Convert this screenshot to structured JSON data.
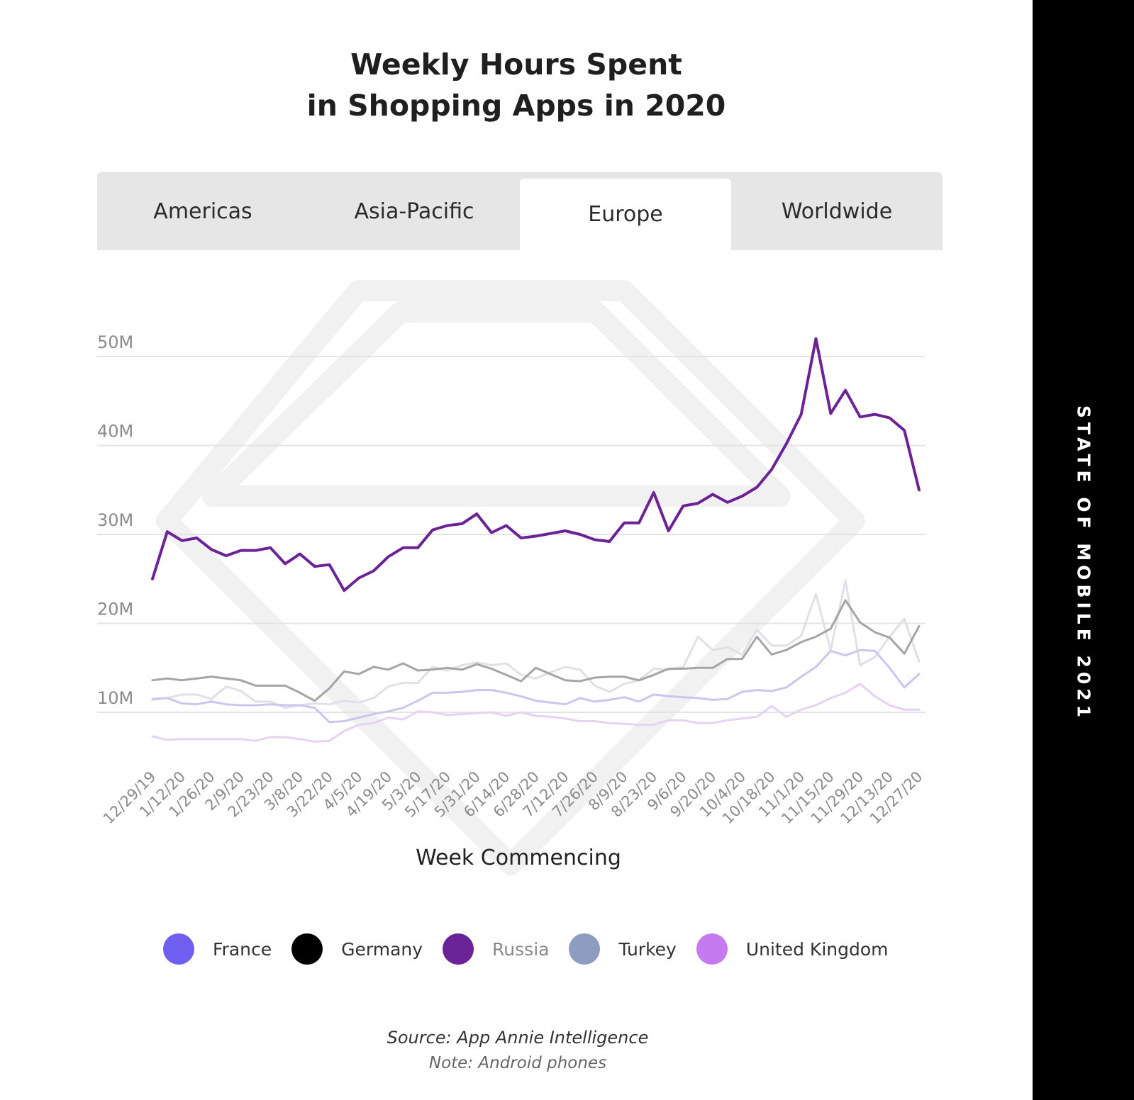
{
  "tabs": [
    {
      "label": "Americas",
      "active": false
    },
    {
      "label": "Asia-Pacific",
      "active": false
    },
    {
      "label": "Europe",
      "active": true
    },
    {
      "label": "Worldwide",
      "active": false
    }
  ],
  "source": "Source: App Annie Intelligence",
  "note": "Note: Android phones",
  "sidebar_label": "STATE OF MOBILE 2021",
  "chart_data": {
    "type": "line",
    "title_lines": [
      "Weekly Hours Spent",
      "in Shopping Apps in 2020"
    ],
    "xlabel": "Week Commencing",
    "ylabel": "",
    "ylim": [
      0,
      55
    ],
    "y_ticks": [
      10,
      20,
      30,
      40,
      50
    ],
    "y_tick_labels": [
      "10M",
      "20M",
      "30M",
      "40M",
      "50M"
    ],
    "grid": true,
    "legend_position": "bottom",
    "x": [
      "12/29/19",
      "1/5/20",
      "1/12/20",
      "1/19/20",
      "1/26/20",
      "2/2/20",
      "2/9/20",
      "2/16/20",
      "2/23/20",
      "3/1/20",
      "3/8/20",
      "3/15/20",
      "3/22/20",
      "3/29/20",
      "4/5/20",
      "4/12/20",
      "4/19/20",
      "4/26/20",
      "5/3/20",
      "5/10/20",
      "5/17/20",
      "5/24/20",
      "5/31/20",
      "6/7/20",
      "6/14/20",
      "6/21/20",
      "6/28/20",
      "7/5/20",
      "7/12/20",
      "7/19/20",
      "7/26/20",
      "8/2/20",
      "8/9/20",
      "8/16/20",
      "8/23/20",
      "8/30/20",
      "9/6/20",
      "9/13/20",
      "9/20/20",
      "9/27/20",
      "10/4/20",
      "10/11/20",
      "10/18/20",
      "10/25/20",
      "11/1/20",
      "11/8/20",
      "11/15/20",
      "11/22/20",
      "11/29/20",
      "12/6/20",
      "12/13/20",
      "12/20/20",
      "12/27/20"
    ],
    "x_tick_labels": [
      "12/29/19",
      "1/12/20",
      "1/26/20",
      "2/9/20",
      "2/23/20",
      "3/8/20",
      "3/22/20",
      "4/5/20",
      "4/19/20",
      "5/3/20",
      "5/17/20",
      "5/31/20",
      "6/14/20",
      "6/28/20",
      "7/12/20",
      "7/26/20",
      "8/9/20",
      "8/23/20",
      "9/6/20",
      "9/20/20",
      "10/4/20",
      "10/18/20",
      "11/1/20",
      "11/15/20",
      "11/29/20",
      "12/13/20",
      "12/27/20"
    ],
    "series": [
      {
        "name": "France",
        "color": "#6f5ff0",
        "line_color": "#cbc6ef",
        "values": [
          11.5,
          11.6,
          11,
          10.9,
          11.2,
          10.9,
          10.8,
          10.8,
          10.9,
          10.8,
          10.8,
          10.5,
          8.9,
          9,
          9.4,
          9.8,
          10.1,
          10.5,
          11.3,
          12.2,
          12.2,
          12.3,
          12.5,
          12.5,
          12.2,
          11.8,
          11.3,
          11.1,
          10.9,
          11.6,
          11.2,
          11.4,
          11.7,
          11.2,
          12,
          11.8,
          11.7,
          11.6,
          11.4,
          11.5,
          12.3,
          12.5,
          12.4,
          12.8,
          14,
          15.1,
          16.9,
          16.4,
          17,
          16.9,
          15,
          12.8,
          14.3
        ]
      },
      {
        "name": "Germany",
        "color": "#000000",
        "line_color": "#a5a5a5",
        "values": [
          13.6,
          13.8,
          13.6,
          13.8,
          14,
          13.8,
          13.6,
          13,
          13,
          13,
          12.2,
          11.3,
          12.7,
          14.6,
          14.3,
          15.1,
          14.8,
          15.5,
          14.7,
          14.8,
          15,
          14.8,
          15.4,
          14.9,
          14.2,
          13.5,
          15,
          14.3,
          13.6,
          13.5,
          13.9,
          14,
          14,
          13.6,
          14.2,
          14.9,
          14.9,
          15,
          15,
          16,
          16,
          18.5,
          16.5,
          17,
          17.9,
          18.5,
          19.4,
          22.6,
          20.1,
          19,
          18.4,
          16.6,
          19.7
        ]
      },
      {
        "name": "Russia",
        "color": "#6b2296",
        "line_color": "#6b2296",
        "values": [
          25,
          30.3,
          29.3,
          29.6,
          28.3,
          27.6,
          28.2,
          28.2,
          28.5,
          26.7,
          27.8,
          26.4,
          26.6,
          23.7,
          25.1,
          25.9,
          27.5,
          28.5,
          28.5,
          30.5,
          31,
          31.2,
          32.3,
          30.2,
          31,
          29.6,
          29.8,
          30.1,
          30.4,
          30,
          29.4,
          29.2,
          31.3,
          31.3,
          34.7,
          30.4,
          33.2,
          33.5,
          34.5,
          33.6,
          34.3,
          35.3,
          37.3,
          40.2,
          43.5,
          52,
          43.6,
          46.2,
          43.2,
          43.5,
          43.1,
          41.7,
          35
        ]
      },
      {
        "name": "Turkey",
        "color": "#8f9cc2",
        "line_color": "#dde1e8",
        "values": [
          11.4,
          11.6,
          12,
          12,
          11.5,
          12.9,
          12.4,
          11.2,
          11.2,
          10.5,
          10.8,
          11,
          10.9,
          11.3,
          11.1,
          11.6,
          12.9,
          13.3,
          13.3,
          15.1,
          14.7,
          15.3,
          15.6,
          15.3,
          15.5,
          14.2,
          13.8,
          14.5,
          15.1,
          14.8,
          13,
          12.3,
          13.2,
          13.6,
          14.9,
          14.8,
          15.1,
          18.5,
          17,
          17.3,
          16.5,
          19.3,
          17.5,
          17.5,
          18.6,
          23.3,
          17,
          24.8,
          15.3,
          16.2,
          18.5,
          20.5,
          15.7
        ]
      },
      {
        "name": "United Kingdom",
        "color": "#c57af0",
        "line_color": "#e6d2f1",
        "values": [
          7.3,
          6.9,
          7,
          7,
          7,
          7,
          7,
          6.8,
          7.2,
          7.2,
          7,
          6.7,
          6.8,
          7.9,
          8.6,
          8.8,
          9.4,
          9.2,
          10.1,
          10,
          9.7,
          9.8,
          9.9,
          10,
          9.6,
          10,
          9.6,
          9.5,
          9.3,
          9,
          9,
          8.8,
          8.7,
          8.6,
          8.6,
          9.1,
          9.1,
          8.8,
          8.8,
          9.1,
          9.3,
          9.5,
          10.7,
          9.5,
          10.3,
          10.8,
          11.6,
          12.2,
          13.2,
          11.8,
          10.8,
          10.3,
          10.3
        ]
      }
    ],
    "draw_order": [
      "Turkey",
      "United Kingdom",
      "France",
      "Germany",
      "Russia"
    ]
  }
}
